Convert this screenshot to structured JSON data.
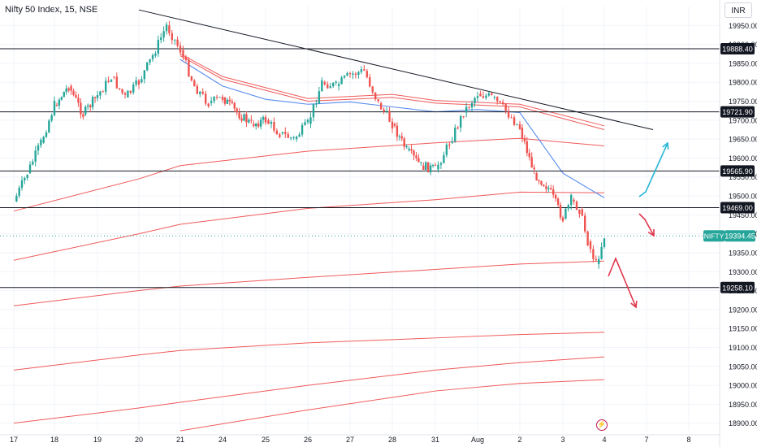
{
  "header": {
    "title": "Nifty 50 Index, 15, NSE",
    "currency": "INR"
  },
  "colors": {
    "up": "#26a69a",
    "down": "#ef5350",
    "envelope": "#f05a5a",
    "ma": "#5b8def",
    "level": "#131722",
    "trend": "#131722",
    "bull_arrow": "#26b6d4",
    "bear_arrow": "#e0364b",
    "price_tag": "#26a69a"
  },
  "chart_data": {
    "type": "candlestick",
    "symbol": "NIFTY",
    "last_price": 19394.45,
    "last_price_label": "19394.45",
    "ylim": [
      18880,
      20000
    ],
    "y_ticks": [
      19950,
      19900,
      19850,
      19800,
      19750,
      19700,
      19650,
      19600,
      19550,
      19500,
      19450,
      19400,
      19350,
      19300,
      19250,
      19200,
      19150,
      19100,
      19050,
      19000,
      18950,
      18900
    ],
    "y_tick_labels": [
      "19950.00",
      "19900.00",
      "19850.00",
      "19800.00",
      "19750.00",
      "19700.00",
      "19650.00",
      "19600.00",
      "19550.00",
      "19500.00",
      "19450.00",
      "19400.00",
      "19350.00",
      "19300.00",
      "19250.00",
      "19200.00",
      "19150.00",
      "19100.00",
      "19050.00",
      "19000.00",
      "18950.00",
      "18900.00"
    ],
    "x_ticks": [
      "17",
      "18",
      "19",
      "20",
      "21",
      "24",
      "25",
      "26",
      "27",
      "28",
      "31",
      "Aug",
      "2",
      "3",
      "4",
      "7",
      "8"
    ],
    "horizontal_levels": [
      {
        "value": 19888.4,
        "label": "19888.40"
      },
      {
        "value": 19721.9,
        "label": "19721.90"
      },
      {
        "value": 19565.9,
        "label": "19565.90"
      },
      {
        "value": 19469.0,
        "label": "19469.00"
      },
      {
        "value": 19258.1,
        "label": "19258.10"
      }
    ],
    "trendline": {
      "from": {
        "day": "20",
        "value": 19991
      },
      "to": {
        "day": "7",
        "value": 19675
      }
    },
    "close_path": [
      {
        "t": "17",
        "v": 19485
      },
      {
        "t": "17",
        "v": 19560
      },
      {
        "t": "17",
        "v": 19640
      },
      {
        "t": "18",
        "v": 19740
      },
      {
        "t": "18",
        "v": 19790
      },
      {
        "t": "18",
        "v": 19715
      },
      {
        "t": "19",
        "v": 19765
      },
      {
        "t": "19",
        "v": 19815
      },
      {
        "t": "19",
        "v": 19760
      },
      {
        "t": "20",
        "v": 19800
      },
      {
        "t": "20",
        "v": 19870
      },
      {
        "t": "20",
        "v": 19950
      },
      {
        "t": "21",
        "v": 19885
      },
      {
        "t": "21",
        "v": 19790
      },
      {
        "t": "21",
        "v": 19745
      },
      {
        "t": "24",
        "v": 19760
      },
      {
        "t": "24",
        "v": 19720
      },
      {
        "t": "24",
        "v": 19690
      },
      {
        "t": "25",
        "v": 19700
      },
      {
        "t": "25",
        "v": 19665
      },
      {
        "t": "25",
        "v": 19650
      },
      {
        "t": "26",
        "v": 19690
      },
      {
        "t": "26",
        "v": 19800
      },
      {
        "t": "26",
        "v": 19790
      },
      {
        "t": "27",
        "v": 19820
      },
      {
        "t": "27",
        "v": 19830
      },
      {
        "t": "27",
        "v": 19745
      },
      {
        "t": "28",
        "v": 19690
      },
      {
        "t": "28",
        "v": 19620
      },
      {
        "t": "28",
        "v": 19580
      },
      {
        "t": "31",
        "v": 19570
      },
      {
        "t": "31",
        "v": 19640
      },
      {
        "t": "31",
        "v": 19720
      },
      {
        "t": "Aug",
        "v": 19770
      },
      {
        "t": "Aug",
        "v": 19760
      },
      {
        "t": "Aug",
        "v": 19725
      },
      {
        "t": "2",
        "v": 19680
      },
      {
        "t": "2",
        "v": 19560
      },
      {
        "t": "2",
        "v": 19520
      },
      {
        "t": "3",
        "v": 19440
      },
      {
        "t": "3",
        "v": 19490
      },
      {
        "t": "3",
        "v": 19465
      },
      {
        "t": "3",
        "v": 19380
      },
      {
        "t": "3",
        "v": 19320
      },
      {
        "t": "4",
        "v": 19394.45
      }
    ],
    "ma_line": [
      {
        "t": "21",
        "v": 19860
      },
      {
        "t": "24",
        "v": 19790
      },
      {
        "t": "25",
        "v": 19755
      },
      {
        "t": "26",
        "v": 19742
      },
      {
        "t": "27",
        "v": 19748
      },
      {
        "t": "28",
        "v": 19735
      },
      {
        "t": "31",
        "v": 19722
      },
      {
        "t": "Aug",
        "v": 19728
      },
      {
        "t": "2",
        "v": 19720
      },
      {
        "t": "3",
        "v": 19560
      },
      {
        "t": "4",
        "v": 19495
      }
    ],
    "envelope_lines": [
      [
        {
          "t": "21",
          "v": 19875
        },
        {
          "t": "24",
          "v": 19815
        },
        {
          "t": "26",
          "v": 19757
        },
        {
          "t": "28",
          "v": 19768
        },
        {
          "t": "31",
          "v": 19752
        },
        {
          "t": "2",
          "v": 19742
        },
        {
          "t": "4",
          "v": 19685
        }
      ],
      [
        {
          "t": "21",
          "v": 19870
        },
        {
          "t": "24",
          "v": 19808
        },
        {
          "t": "26",
          "v": 19750
        },
        {
          "t": "28",
          "v": 19760
        },
        {
          "t": "31",
          "v": 19745
        },
        {
          "t": "2",
          "v": 19735
        },
        {
          "t": "4",
          "v": 19675
        }
      ],
      [
        {
          "t": "17",
          "v": 19460
        },
        {
          "t": "20",
          "v": 19545
        },
        {
          "t": "21",
          "v": 19580
        },
        {
          "t": "26",
          "v": 19618
        },
        {
          "t": "31",
          "v": 19640
        },
        {
          "t": "2",
          "v": 19652
        },
        {
          "t": "4",
          "v": 19632
        }
      ],
      [
        {
          "t": "17",
          "v": 19330
        },
        {
          "t": "20",
          "v": 19400
        },
        {
          "t": "21",
          "v": 19425
        },
        {
          "t": "26",
          "v": 19467
        },
        {
          "t": "31",
          "v": 19490
        },
        {
          "t": "2",
          "v": 19510
        },
        {
          "t": "4",
          "v": 19508
        }
      ],
      [
        {
          "t": "17",
          "v": 19210
        },
        {
          "t": "20",
          "v": 19250
        },
        {
          "t": "21",
          "v": 19262
        },
        {
          "t": "26",
          "v": 19285
        },
        {
          "t": "31",
          "v": 19306
        },
        {
          "t": "2",
          "v": 19320
        },
        {
          "t": "4",
          "v": 19328
        }
      ],
      [
        {
          "t": "17",
          "v": 19040
        },
        {
          "t": "20",
          "v": 19080
        },
        {
          "t": "21",
          "v": 19092
        },
        {
          "t": "26",
          "v": 19112
        },
        {
          "t": "31",
          "v": 19125
        },
        {
          "t": "2",
          "v": 19134
        },
        {
          "t": "4",
          "v": 19140
        }
      ],
      [
        {
          "t": "17",
          "v": 18900
        },
        {
          "t": "20",
          "v": 18940
        },
        {
          "t": "21",
          "v": 18955
        },
        {
          "t": "26",
          "v": 19000
        },
        {
          "t": "31",
          "v": 19040
        },
        {
          "t": "2",
          "v": 19060
        },
        {
          "t": "4",
          "v": 19075
        }
      ],
      [
        {
          "t": "21",
          "v": 18880
        },
        {
          "t": "26",
          "v": 18935
        },
        {
          "t": "31",
          "v": 18985
        },
        {
          "t": "2",
          "v": 19005
        },
        {
          "t": "4",
          "v": 19015
        }
      ]
    ],
    "scenario_arrows": [
      {
        "name": "bullish",
        "points": [
          {
            "t": "4",
            "v": 19500
          },
          {
            "t": "4",
            "v": 19520
          },
          {
            "t": "7",
            "v": 19655
          }
        ]
      },
      {
        "name": "bearish-small",
        "points": [
          {
            "t": "4",
            "v": 19460
          },
          {
            "t": "4",
            "v": 19440
          },
          {
            "t": "4",
            "v": 19395
          }
        ]
      },
      {
        "name": "bearish-large",
        "points": [
          {
            "t": "4",
            "v": 19315
          },
          {
            "t": "4",
            "v": 19350
          },
          {
            "t": "7",
            "v": 19200
          }
        ]
      }
    ]
  }
}
